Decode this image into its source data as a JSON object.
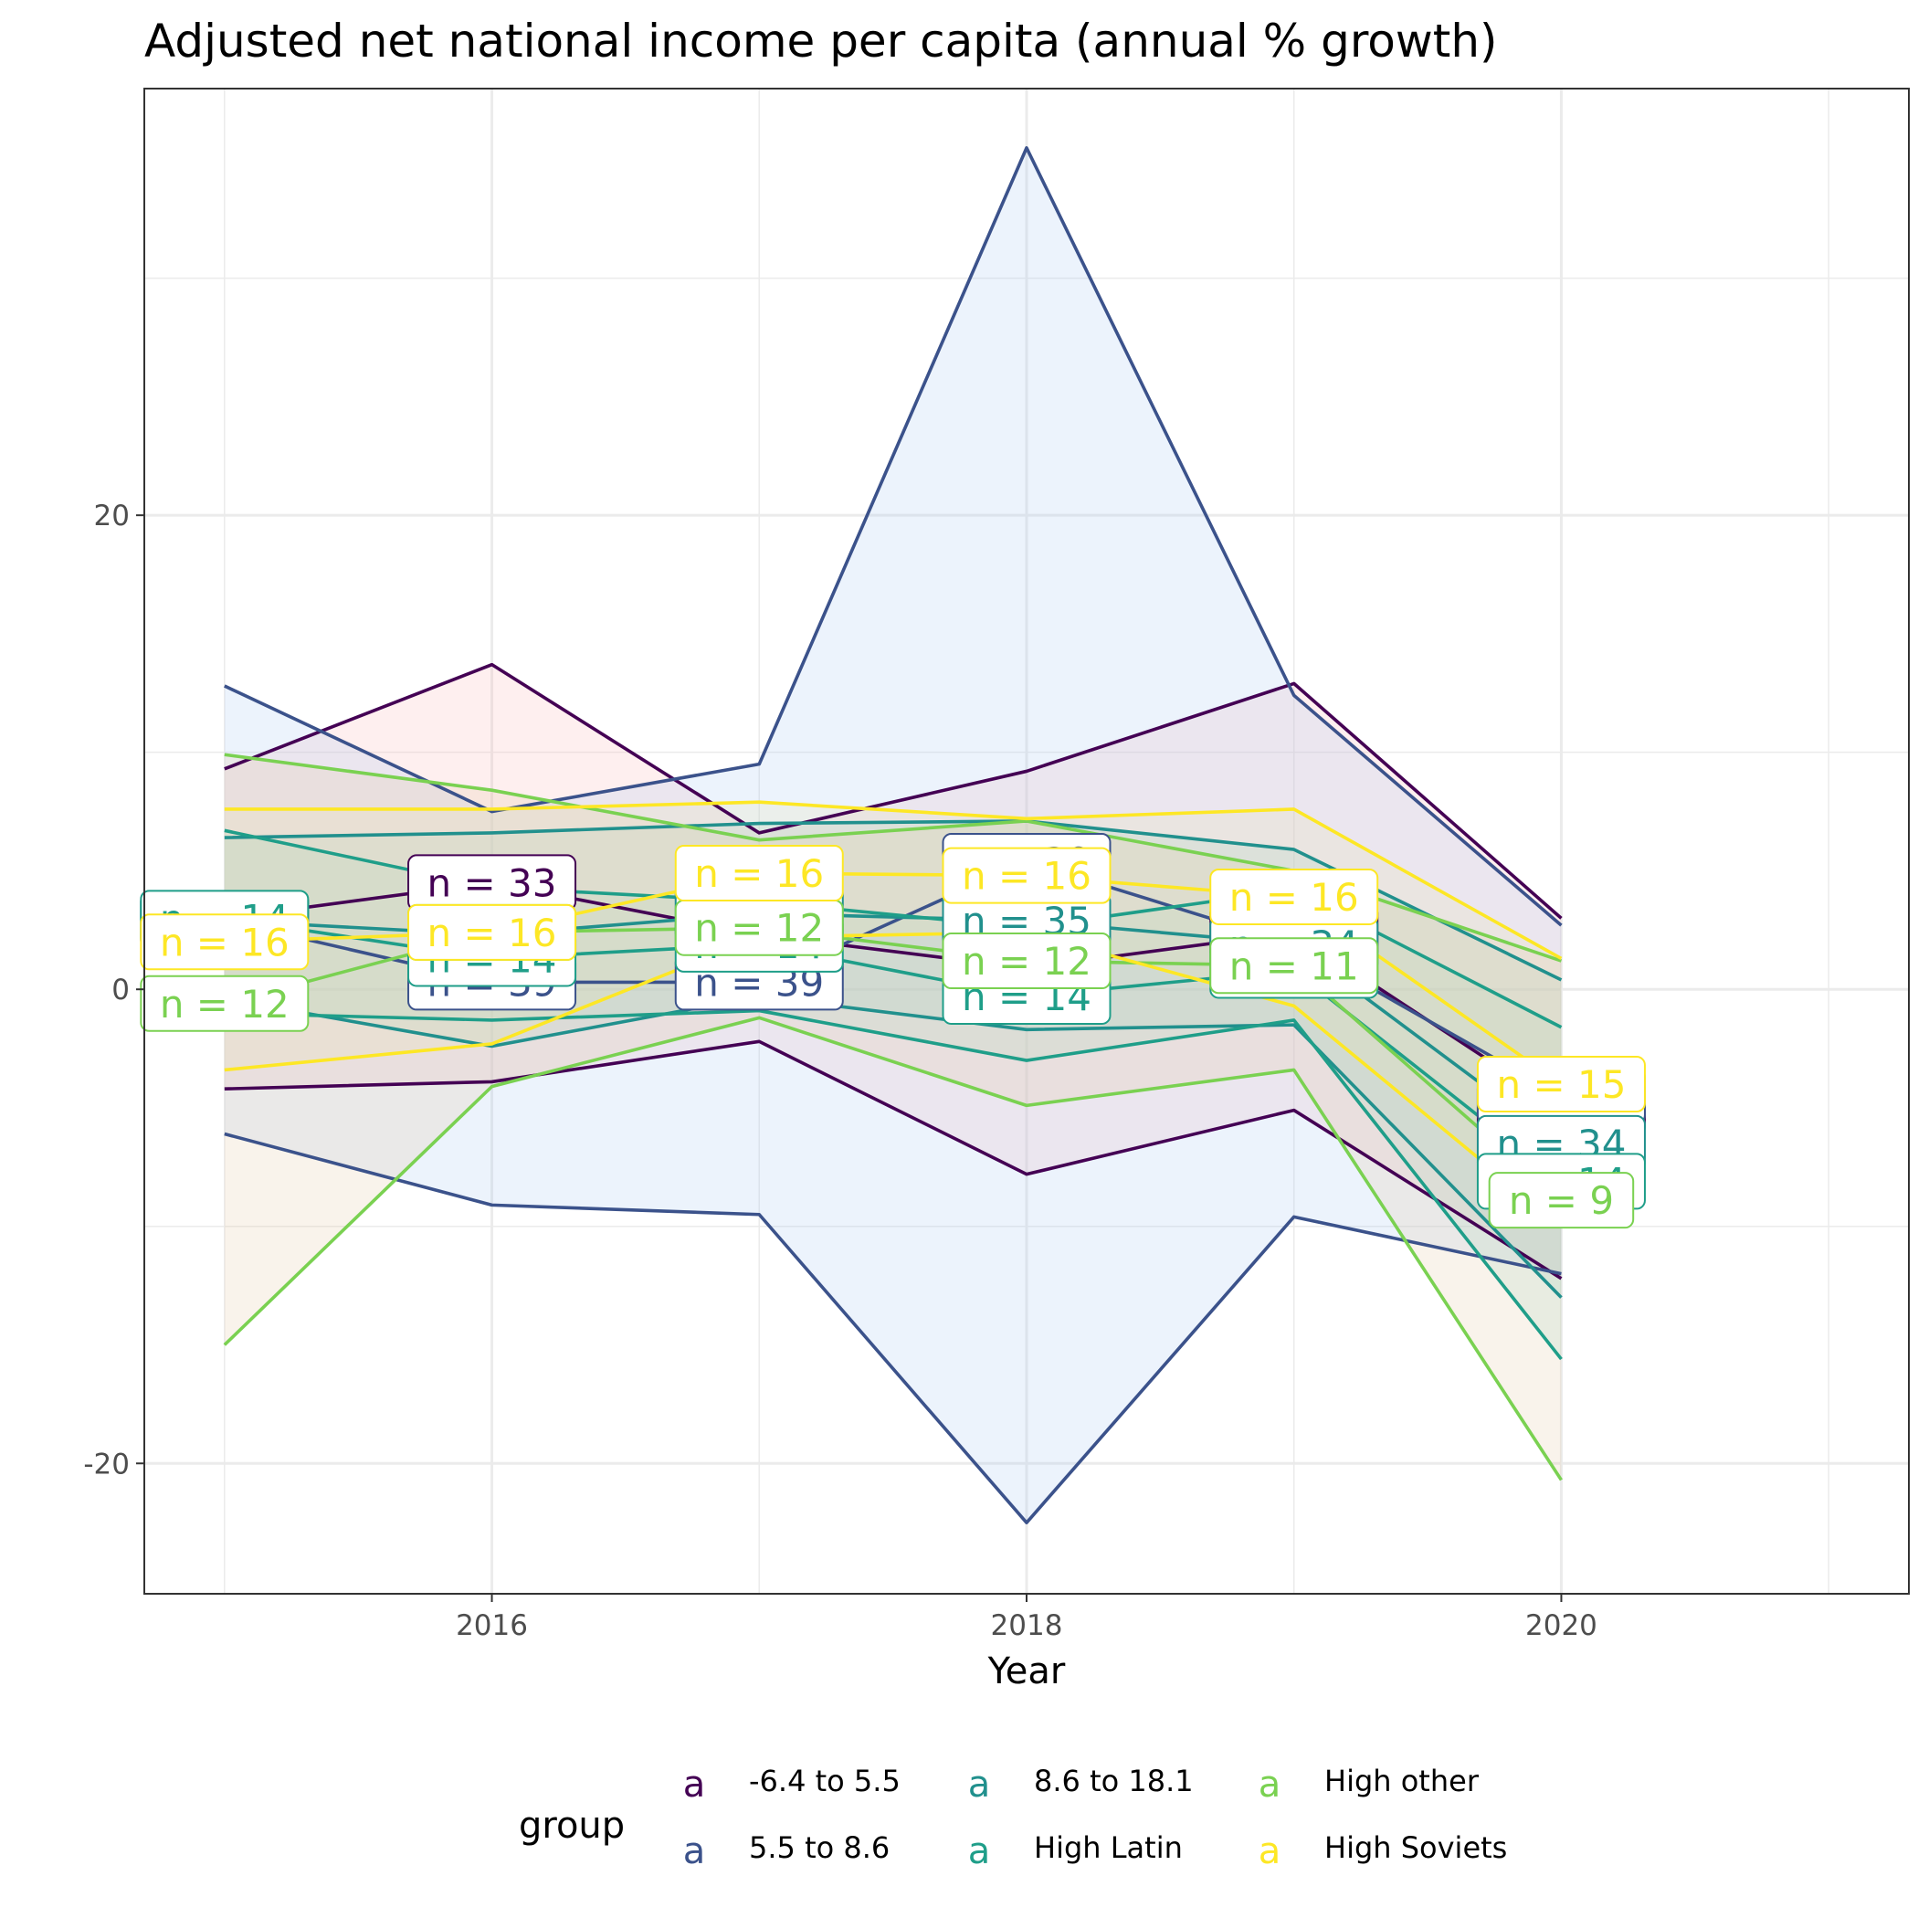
{
  "chart_data": {
    "type": "line",
    "title": "Adjusted net national income per capita (annual % growth)",
    "xlabel": "Year",
    "ylabel": "",
    "xlim": [
      2014.7,
      2021.3
    ],
    "ylim": [
      -25.5,
      38
    ],
    "x_ticks": [
      2016,
      2018,
      2020
    ],
    "y_ticks": [
      -20,
      0,
      20
    ],
    "grid": true,
    "legend": {
      "title": "group",
      "position": "bottom",
      "key_glyph": "a"
    },
    "series": [
      {
        "name": "-6.4 to 5.5",
        "color": "#440154",
        "ribbon_color": "#f9b4b4",
        "x": [
          2015,
          2016,
          2017,
          2018,
          2019,
          2020
        ],
        "upper": [
          9.3,
          13.7,
          6.6,
          9.2,
          12.9,
          3.0
        ],
        "mean": [
          3.0,
          4.5,
          2.3,
          0.9,
          2.4,
          -5.0
        ],
        "lower": [
          -4.2,
          -3.9,
          -2.2,
          -7.8,
          -5.1,
          -12.2
        ],
        "labels": [
          {
            "x": 2016,
            "text": "n = 33"
          },
          {
            "x": 2019,
            "text": "n = 34"
          },
          {
            "x": 2020,
            "text": "n = 34"
          }
        ]
      },
      {
        "name": "5.5 to 8.6",
        "color": "#3b528b",
        "ribbon_color": "#a9c8f3",
        "x": [
          2015,
          2016,
          2017,
          2018,
          2019,
          2020
        ],
        "upper": [
          12.8,
          7.5,
          9.5,
          35.5,
          12.4,
          2.7
        ],
        "mean": [
          2.9,
          0.3,
          0.3,
          5.4,
          1.9,
          -4.5
        ],
        "lower": [
          -6.1,
          -9.1,
          -9.5,
          -22.5,
          -9.6,
          -12.0
        ],
        "labels": [
          {
            "x": 2015,
            "text": "n = 39"
          },
          {
            "x": 2016,
            "text": "n = 39"
          },
          {
            "x": 2017,
            "text": "n = 39"
          },
          {
            "x": 2018,
            "text": "n = 39"
          },
          {
            "x": 2020,
            "text": "n = 39"
          }
        ]
      },
      {
        "name": "8.6 to 18.1",
        "color": "#21908d",
        "ribbon_color": "#9bd3c9",
        "x": [
          2015,
          2016,
          2017,
          2018,
          2019,
          2020
        ],
        "upper": [
          6.4,
          6.6,
          7.0,
          7.1,
          5.9,
          0.4
        ],
        "mean": [
          2.9,
          2.3,
          3.2,
          2.9,
          1.9,
          -6.5
        ],
        "lower": [
          -0.4,
          -2.4,
          -0.3,
          -1.7,
          -1.5,
          -13.0
        ],
        "labels": [
          {
            "x": 2015,
            "text": "n = 35"
          },
          {
            "x": 2017,
            "text": "n = 35"
          },
          {
            "x": 2018,
            "text": "n = 35"
          },
          {
            "x": 2019,
            "text": "n = 34"
          },
          {
            "x": 2020,
            "text": "n = 34"
          }
        ]
      },
      {
        "name": "High Latin",
        "color": "#1f9e89",
        "ribbon_color": "#9ed9c4",
        "x": [
          2015,
          2016,
          2017,
          2018,
          2019,
          2020
        ],
        "upper": [
          6.7,
          4.3,
          3.7,
          2.6,
          4.2,
          -1.6
        ],
        "mean": [
          3.0,
          1.3,
          1.9,
          -0.3,
          0.8,
          -8.1
        ],
        "lower": [
          -1.0,
          -1.3,
          -0.9,
          -3.0,
          -1.3,
          -15.6
        ],
        "labels": [
          {
            "x": 2015,
            "text": "n = 14"
          },
          {
            "x": 2016,
            "text": "n = 14"
          },
          {
            "x": 2017,
            "text": "n = 14"
          },
          {
            "x": 2018,
            "text": "n = 14"
          },
          {
            "x": 2019,
            "text": "n = 14"
          },
          {
            "x": 2020,
            "text": "n = 14"
          }
        ]
      },
      {
        "name": "High other",
        "color": "#7ad151",
        "ribbon_color": "#e3c9a4",
        "x": [
          2015,
          2016,
          2017,
          2018,
          2019,
          2020
        ],
        "upper": [
          9.9,
          8.4,
          6.3,
          7.1,
          5.0,
          1.2
        ],
        "mean": [
          -0.6,
          2.4,
          2.6,
          1.2,
          1.0,
          -8.9
        ],
        "lower": [
          -15.0,
          -4.1,
          -1.2,
          -4.9,
          -3.4,
          -20.7
        ],
        "labels": [
          {
            "x": 2015,
            "text": "n = 12"
          },
          {
            "x": 2016,
            "text": "n = 12"
          },
          {
            "x": 2017,
            "text": "n = 12"
          },
          {
            "x": 2018,
            "text": "n = 12"
          },
          {
            "x": 2019,
            "text": "n = 11"
          },
          {
            "x": 2020,
            "text": "n = 9"
          }
        ]
      },
      {
        "name": "High Soviets",
        "color": "#fde725",
        "ribbon_color": "#e8e3b0",
        "x": [
          2015,
          2016,
          2017,
          2018,
          2019,
          2020
        ],
        "upper": [
          7.6,
          7.6,
          7.9,
          7.2,
          7.6,
          1.3
        ],
        "mean": [
          2.0,
          2.4,
          4.9,
          4.8,
          3.9,
          -4.0
        ],
        "lower": [
          -3.4,
          -2.3,
          2.2,
          2.4,
          -0.7,
          -10.0
        ],
        "labels": [
          {
            "x": 2015,
            "text": "n = 16"
          },
          {
            "x": 2016,
            "text": "n = 16"
          },
          {
            "x": 2017,
            "text": "n = 16"
          },
          {
            "x": 2018,
            "text": "n = 16"
          },
          {
            "x": 2019,
            "text": "n = 16"
          },
          {
            "x": 2020,
            "text": "n = 15"
          }
        ]
      }
    ]
  }
}
